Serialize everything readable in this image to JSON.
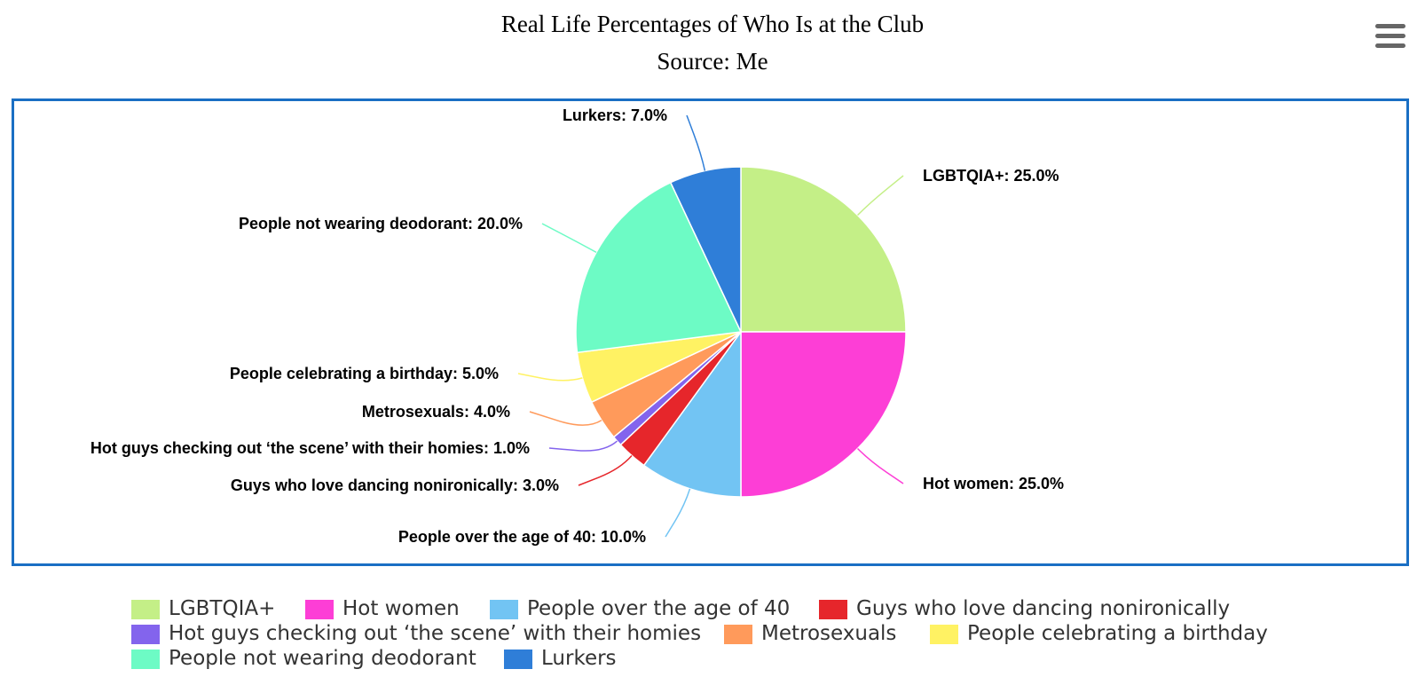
{
  "chart_data": {
    "type": "pie",
    "title": "Real Life Percentages of Who Is at the Club",
    "subtitle": "Source: Me",
    "legend_position": "bottom",
    "slices": [
      {
        "name": "LGBTQIA+",
        "value": 25.0,
        "label": "LGBTQIA+: 25.0%",
        "color": "#c4ef87"
      },
      {
        "name": "Hot women",
        "value": 25.0,
        "label": "Hot women: 25.0%",
        "color": "#fd3ed6"
      },
      {
        "name": "People over the age of 40",
        "value": 10.0,
        "label": "People over the age of 40: 10.0%",
        "color": "#72c4f3"
      },
      {
        "name": "Guys who love dancing nonironically",
        "value": 3.0,
        "label": "Guys who love dancing nonironically: 3.0%",
        "color": "#e6262b"
      },
      {
        "name": "Hot guys checking out ‘the scene’ with their homies",
        "value": 1.0,
        "label": "Hot guys checking out ‘the scene’ with their homies: 1.0%",
        "color": "#8364ed"
      },
      {
        "name": "Metrosexuals",
        "value": 4.0,
        "label": "Metrosexuals: 4.0%",
        "color": "#ff9a5b"
      },
      {
        "name": "People celebrating a birthday",
        "value": 5.0,
        "label": "People celebrating a birthday: 5.0%",
        "color": "#fff263"
      },
      {
        "name": "People not wearing deodorant",
        "value": 20.0,
        "label": "People not wearing deodorant: 20.0%",
        "color": "#6dfbc5"
      },
      {
        "name": "Lurkers",
        "value": 7.0,
        "label": "Lurkers: 7.0%",
        "color": "#2f7ed8"
      }
    ]
  },
  "ui": {
    "frame_color": "#1a6fc4",
    "menu_icon": "hamburger-menu-icon"
  }
}
